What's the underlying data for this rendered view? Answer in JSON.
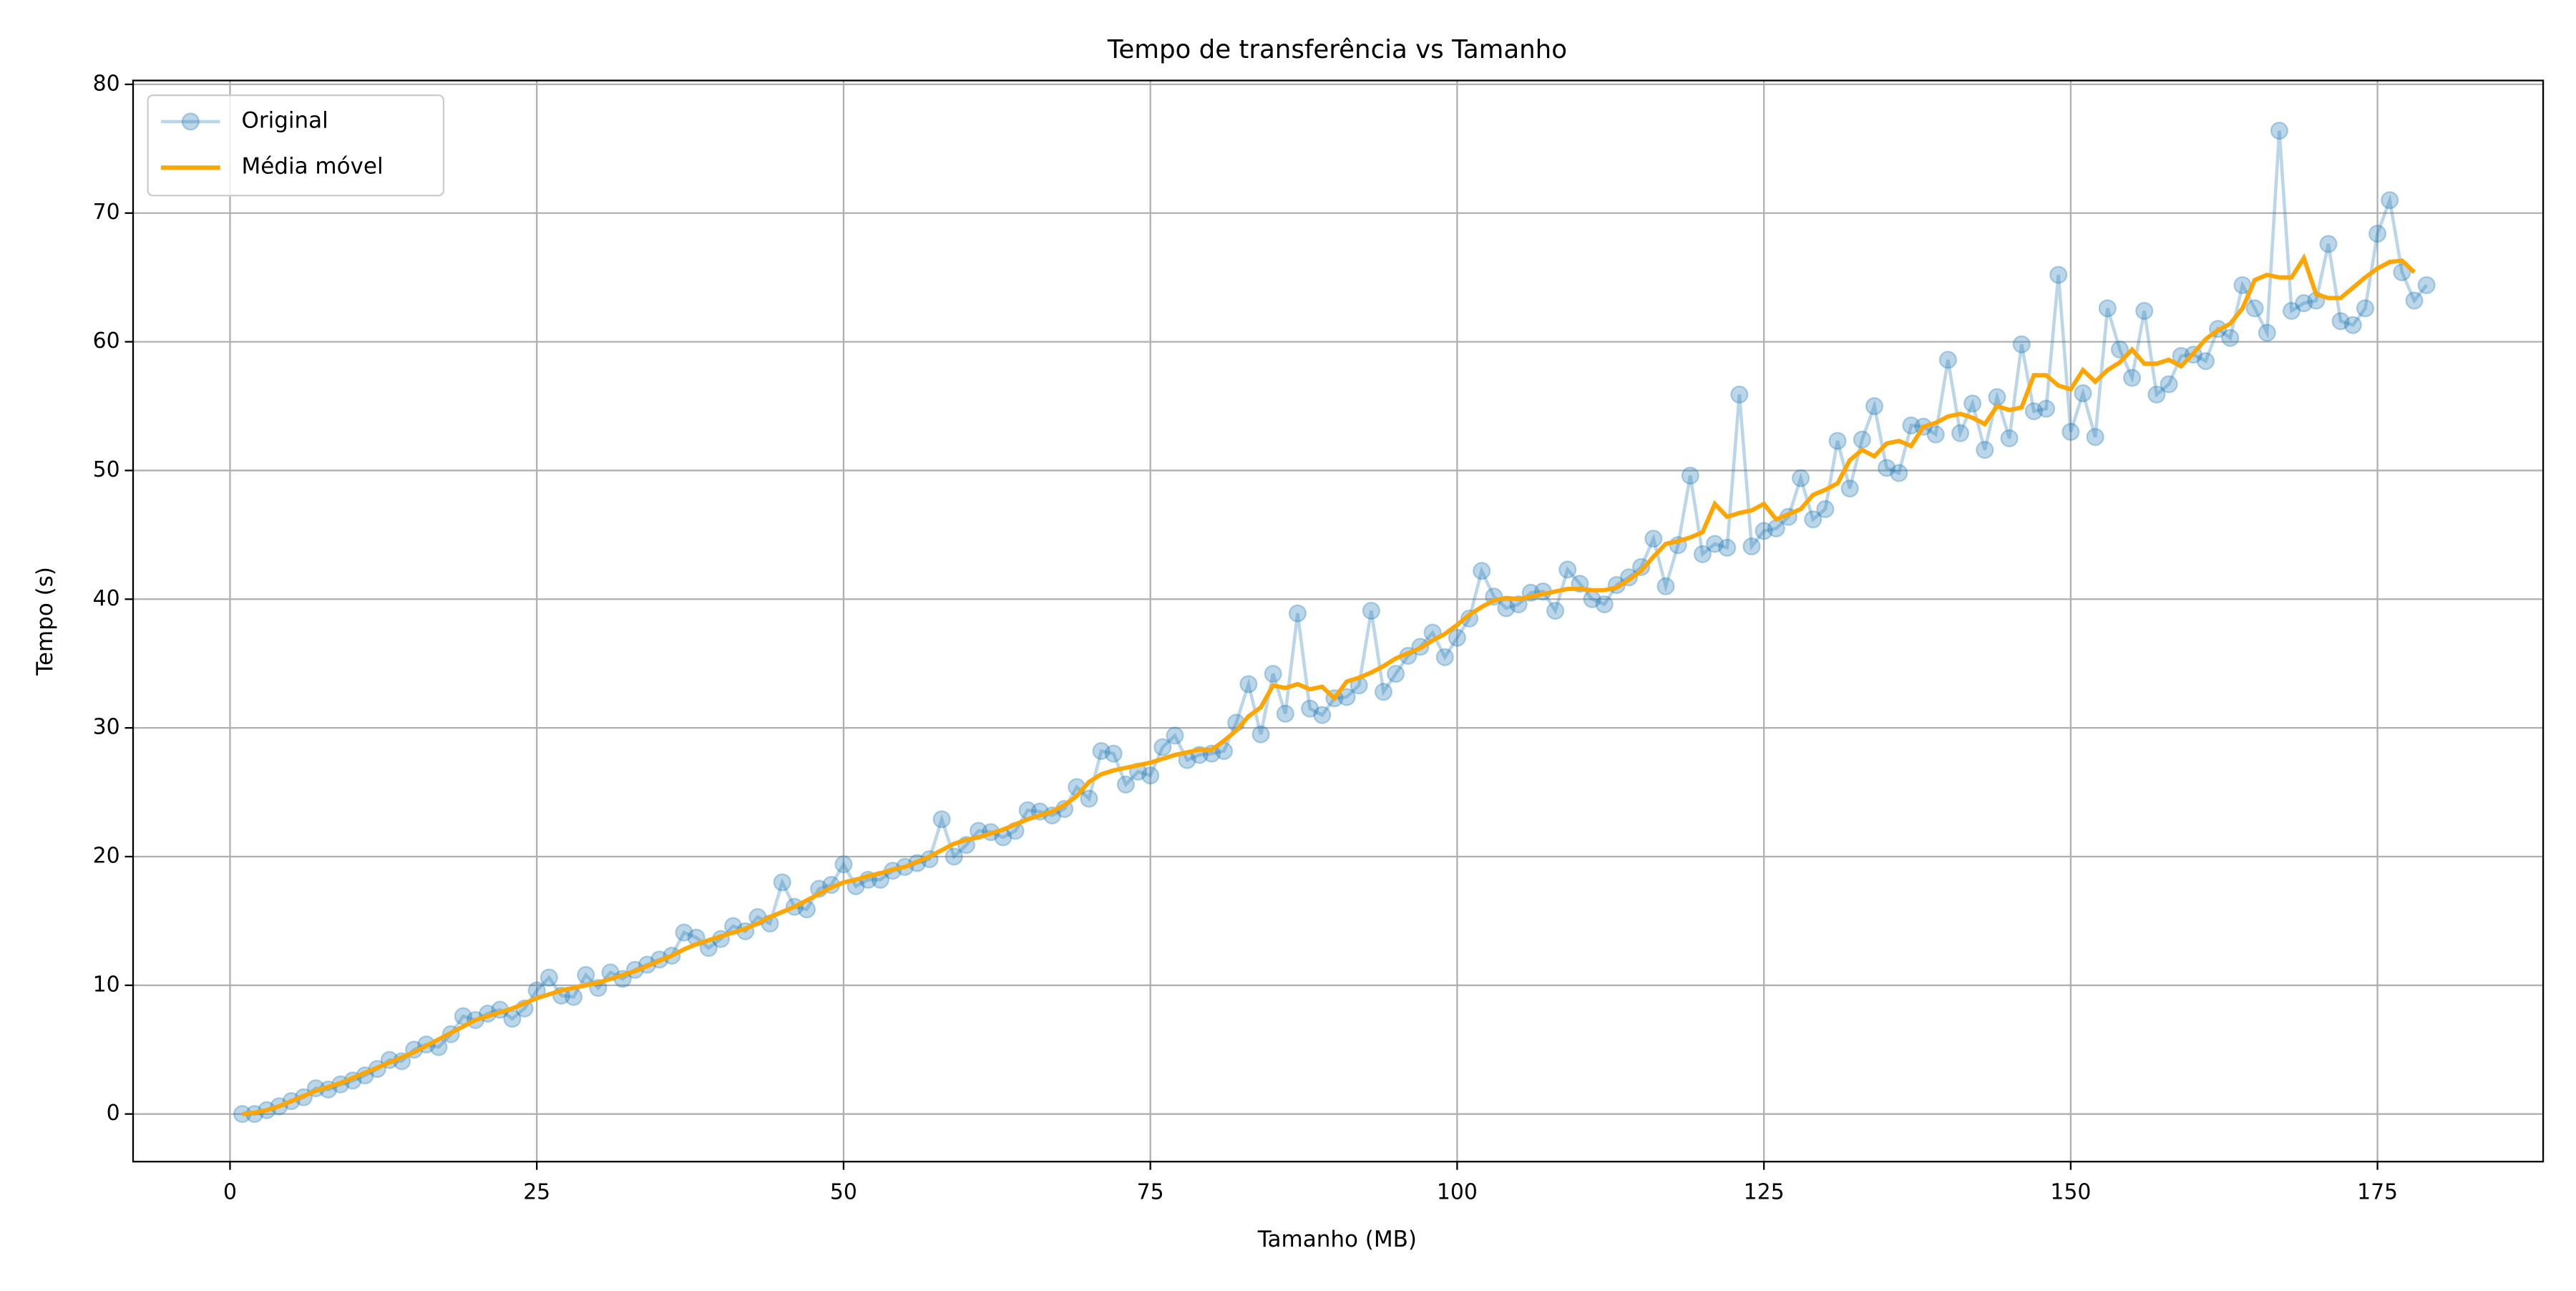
{
  "chart_data": {
    "type": "line",
    "title": "Tempo de transferência vs Tamanho",
    "xlabel": "Tamanho (MB)",
    "ylabel": "Tempo (s)",
    "x": [
      1,
      2,
      3,
      4,
      5,
      6,
      7,
      8,
      9,
      10,
      11,
      12,
      13,
      14,
      15,
      16,
      17,
      18,
      19,
      20,
      21,
      22,
      23,
      24,
      25,
      26,
      27,
      28,
      29,
      30,
      31,
      32,
      33,
      34,
      35,
      36,
      37,
      38,
      39,
      40,
      41,
      42,
      43,
      44,
      45,
      46,
      47,
      48,
      49,
      50,
      51,
      52,
      53,
      54,
      55,
      56,
      57,
      58,
      59,
      60,
      61,
      62,
      63,
      64,
      65,
      66,
      67,
      68,
      69,
      70,
      71,
      72,
      73,
      74,
      75,
      76,
      77,
      78,
      79,
      80,
      81,
      82,
      83,
      84,
      85,
      86,
      87,
      88,
      89,
      90,
      91,
      92,
      93,
      94,
      95,
      96,
      97,
      98,
      99,
      100,
      101,
      102,
      103,
      104,
      105,
      106,
      107,
      108,
      109,
      110,
      111,
      112,
      113,
      114,
      115,
      116,
      117,
      118,
      119,
      120,
      121,
      122,
      123,
      124,
      125,
      126,
      127,
      128,
      129,
      130,
      131,
      132,
      133,
      134,
      135,
      136,
      137,
      138,
      139,
      140,
      141,
      142,
      143,
      144,
      145,
      146,
      147,
      148,
      149,
      150,
      151,
      152,
      153,
      154,
      155,
      156,
      157,
      158,
      159,
      160,
      161,
      162,
      163,
      164,
      165,
      166,
      167,
      168,
      169,
      170,
      171,
      172,
      173,
      174,
      175,
      176,
      177,
      178,
      179
    ],
    "series": [
      {
        "name": "Original",
        "color": "#1f77b4",
        "markers": true,
        "values": [
          0,
          0,
          0.3,
          0.6,
          1,
          1.3,
          2,
          1.9,
          2.3,
          2.6,
          3,
          3.5,
          4.2,
          4.1,
          5,
          5.4,
          5.2,
          6.2,
          7.6,
          7.3,
          7.8,
          8.1,
          7.4,
          8.2,
          9.6,
          10.6,
          9.2,
          9.1,
          10.8,
          9.8,
          11,
          10.5,
          11.2,
          11.6,
          12,
          12.3,
          14.1,
          13.7,
          12.9,
          13.6,
          14.6,
          14.2,
          15.3,
          14.8,
          18,
          16.1,
          15.9,
          17.5,
          17.8,
          19.4,
          17.7,
          18.2,
          18.2,
          18.9,
          19.2,
          19.5,
          19.8,
          22.9,
          20,
          20.9,
          22,
          21.9,
          21.5,
          22,
          23.6,
          23.5,
          23.2,
          23.7,
          25.4,
          24.5,
          28.2,
          28,
          25.6,
          26.6,
          26.3,
          28.5,
          29.4,
          27.5,
          27.9,
          28,
          28.2,
          30.4,
          33.4,
          29.5,
          34.2,
          31.1,
          38.9,
          31.5,
          31,
          32.3,
          32.4,
          33.3,
          39.1,
          32.8,
          34.2,
          35.6,
          36.3,
          37.4,
          35.5,
          37,
          38.5,
          42.2,
          40.2,
          39.3,
          39.6,
          40.5,
          40.6,
          39.1,
          42.3,
          41.2,
          40,
          39.6,
          41.1,
          41.7,
          42.5,
          44.7,
          41,
          44.2,
          49.6,
          43.5,
          44.3,
          44,
          55.9,
          44.1,
          45.3,
          45.5,
          46.4,
          49.4,
          46.2,
          47,
          52.3,
          48.6,
          52.4,
          55,
          50.2,
          49.8,
          53.5,
          53.4,
          52.8,
          58.6,
          52.9,
          55.2,
          51.6,
          55.7,
          52.5,
          59.8,
          54.6,
          54.8,
          65.2,
          53,
          56,
          52.6,
          62.6,
          59.4,
          57.2,
          62.4,
          55.9,
          56.7,
          58.9,
          59,
          58.5,
          61,
          60.3,
          64.4,
          62.6,
          60.7,
          76.4,
          62.4,
          63,
          63.2,
          67.6,
          61.6,
          61.3,
          62.6,
          68.4,
          71,
          65.4,
          63.2,
          64.4
        ]
      },
      {
        "name": "Média móvel",
        "color": "orange",
        "markers": false,
        "values": [
          0,
          0.1,
          0.3,
          0.6,
          1,
          1.4,
          1.8,
          2.1,
          2.4,
          2.8,
          3.2,
          3.6,
          4,
          4.4,
          4.8,
          5.3,
          5.8,
          6.3,
          6.8,
          7.3,
          7.6,
          7.9,
          8.2,
          8.6,
          9,
          9.3,
          9.6,
          9.8,
          10,
          10.2,
          10.5,
          10.8,
          11.1,
          11.5,
          11.9,
          12.3,
          12.8,
          13.2,
          13.5,
          13.8,
          14.1,
          14.4,
          14.8,
          15.3,
          15.7,
          16.1,
          16.6,
          17.1,
          17.6,
          18,
          18.2,
          18.5,
          18.7,
          19,
          19.2,
          19.6,
          20,
          20.5,
          21,
          21.3,
          21.5,
          21.8,
          22.1,
          22.5,
          22.9,
          23.2,
          23.5,
          24,
          24.7,
          25.8,
          26.4,
          26.7,
          26.9,
          27.1,
          27.3,
          27.6,
          27.9,
          28.1,
          28.3,
          28.3,
          29,
          29.8,
          30.9,
          31.6,
          33.3,
          33.1,
          33.4,
          33,
          33.2,
          32.3,
          33.6,
          33.9,
          34.3,
          34.8,
          35.4,
          35.8,
          36.2,
          36.8,
          37.3,
          38,
          38.8,
          39.4,
          39.9,
          40.1,
          40,
          40.2,
          40.4,
          40.6,
          40.8,
          40.8,
          40.7,
          40.7,
          40.9,
          41.5,
          42.2,
          43.3,
          44.3,
          44.5,
          44.8,
          45.2,
          47.4,
          46.4,
          46.7,
          46.9,
          47.4,
          46.2,
          46.6,
          47,
          48.1,
          48.5,
          49,
          50.8,
          51.6,
          51.1,
          52.1,
          52.3,
          51.9,
          53.4,
          53.7,
          54.2,
          54.4,
          54.1,
          53.6,
          55,
          54.7,
          54.9,
          57.4,
          57.4,
          56.6,
          56.3,
          57.8,
          56.9,
          57.8,
          58.4,
          59.4,
          58.3,
          58.3,
          58.6,
          58.1,
          59.1,
          60.2,
          60.9,
          61.4,
          62.6,
          64.8,
          65.2,
          65,
          65,
          66.5,
          63.7,
          63.4,
          63.4,
          64.2,
          65,
          65.7,
          66.2,
          66.3,
          65.4,
          null
        ]
      }
    ],
    "xlim": [
      -7.9,
      188.5
    ],
    "ylim": [
      -3.7,
      80.3
    ],
    "xticks": [
      0,
      25,
      50,
      75,
      100,
      125,
      150,
      175
    ],
    "yticks": [
      0,
      10,
      20,
      30,
      40,
      50,
      60,
      70,
      80
    ],
    "grid": true,
    "legend": "upper left"
  }
}
